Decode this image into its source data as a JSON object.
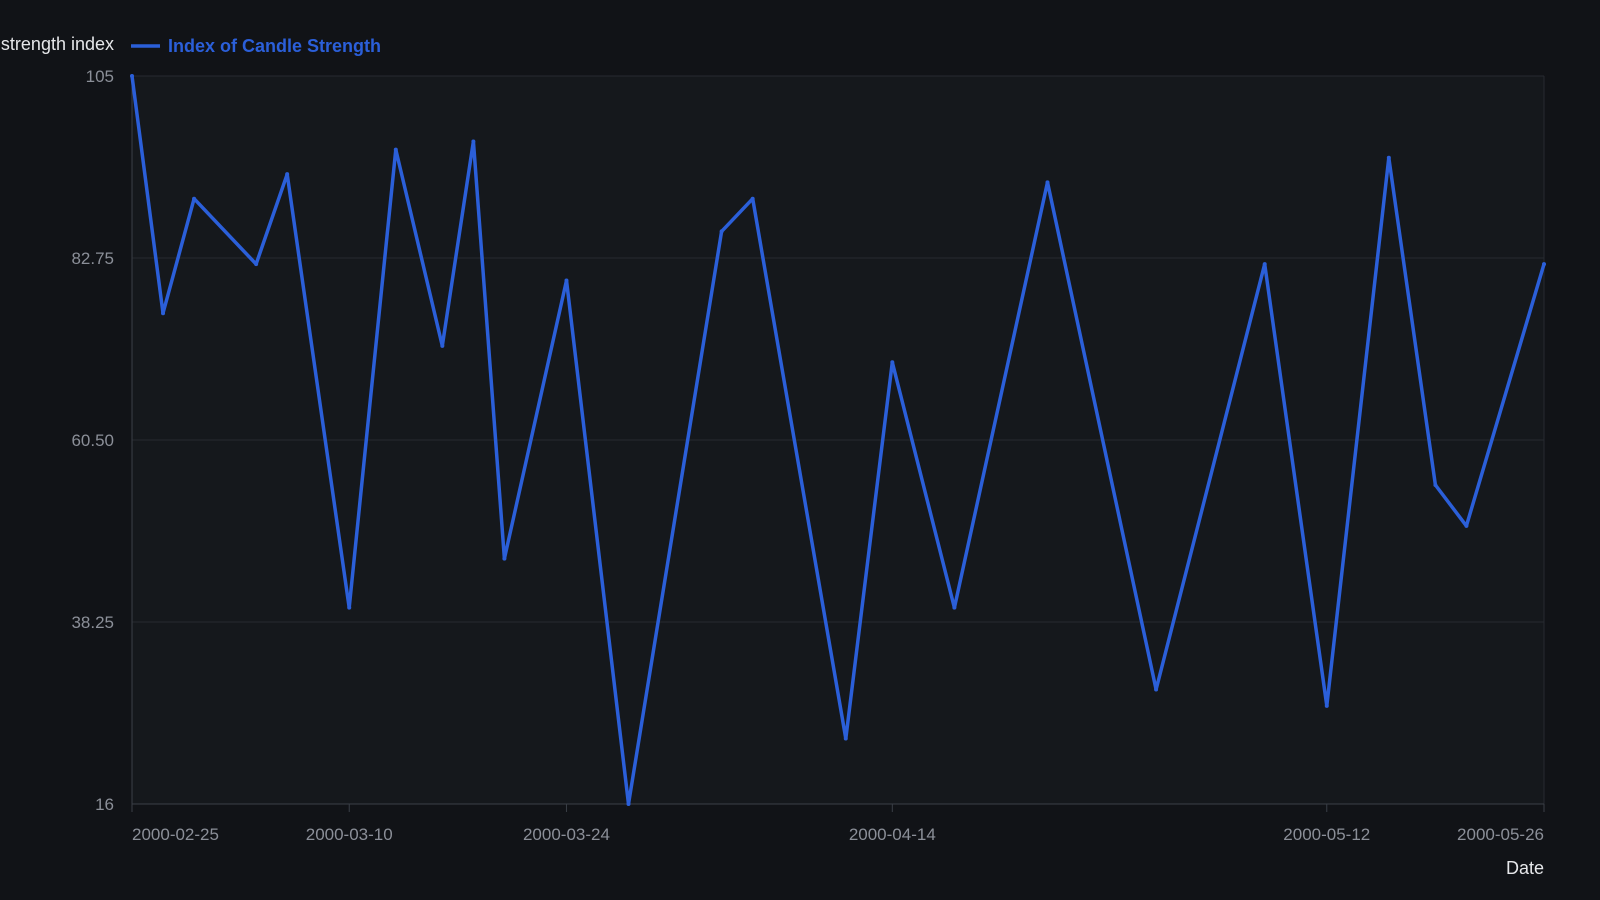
{
  "chart_data": {
    "type": "line",
    "ylabel": "strength index",
    "xlabel": "Date",
    "ylim": [
      16,
      105
    ],
    "y_ticks": [
      "105",
      "82.75",
      "60.50",
      "38.25",
      "16"
    ],
    "y_tick_values": [
      105,
      82.75,
      60.5,
      38.25,
      16
    ],
    "x_ticks": [
      "2000-02-25",
      "2000-03-10",
      "2000-03-24",
      "2000-04-14",
      "2000-05-12",
      "2000-05-26"
    ],
    "xlim": [
      "2000-02-25",
      "2000-05-26"
    ],
    "grid": true,
    "legend_position": "top-left",
    "colors": {
      "background": "#111317",
      "plot_background": "#15181c",
      "grid": "#262a30",
      "axis": "#3a3f47",
      "series": "#2b5fd9"
    },
    "series": [
      {
        "name": "Index of Candle Strength",
        "points": [
          {
            "x": "2000-02-25",
            "y": 105
          },
          {
            "x": "2000-02-27",
            "y": 76
          },
          {
            "x": "2000-02-29",
            "y": 90
          },
          {
            "x": "2000-03-04",
            "y": 82
          },
          {
            "x": "2000-03-06",
            "y": 93
          },
          {
            "x": "2000-03-10",
            "y": 40
          },
          {
            "x": "2000-03-13",
            "y": 96
          },
          {
            "x": "2000-03-16",
            "y": 72
          },
          {
            "x": "2000-03-18",
            "y": 97
          },
          {
            "x": "2000-03-20",
            "y": 46
          },
          {
            "x": "2000-03-24",
            "y": 80
          },
          {
            "x": "2000-03-28",
            "y": 16
          },
          {
            "x": "2000-04-03",
            "y": 86
          },
          {
            "x": "2000-04-05",
            "y": 90
          },
          {
            "x": "2000-04-11",
            "y": 24
          },
          {
            "x": "2000-04-14",
            "y": 70
          },
          {
            "x": "2000-04-18",
            "y": 40
          },
          {
            "x": "2000-04-24",
            "y": 92
          },
          {
            "x": "2000-05-01",
            "y": 30
          },
          {
            "x": "2000-05-08",
            "y": 82
          },
          {
            "x": "2000-05-12",
            "y": 28
          },
          {
            "x": "2000-05-16",
            "y": 95
          },
          {
            "x": "2000-05-19",
            "y": 55
          },
          {
            "x": "2000-05-21",
            "y": 50
          },
          {
            "x": "2000-05-26",
            "y": 82
          }
        ]
      }
    ]
  }
}
